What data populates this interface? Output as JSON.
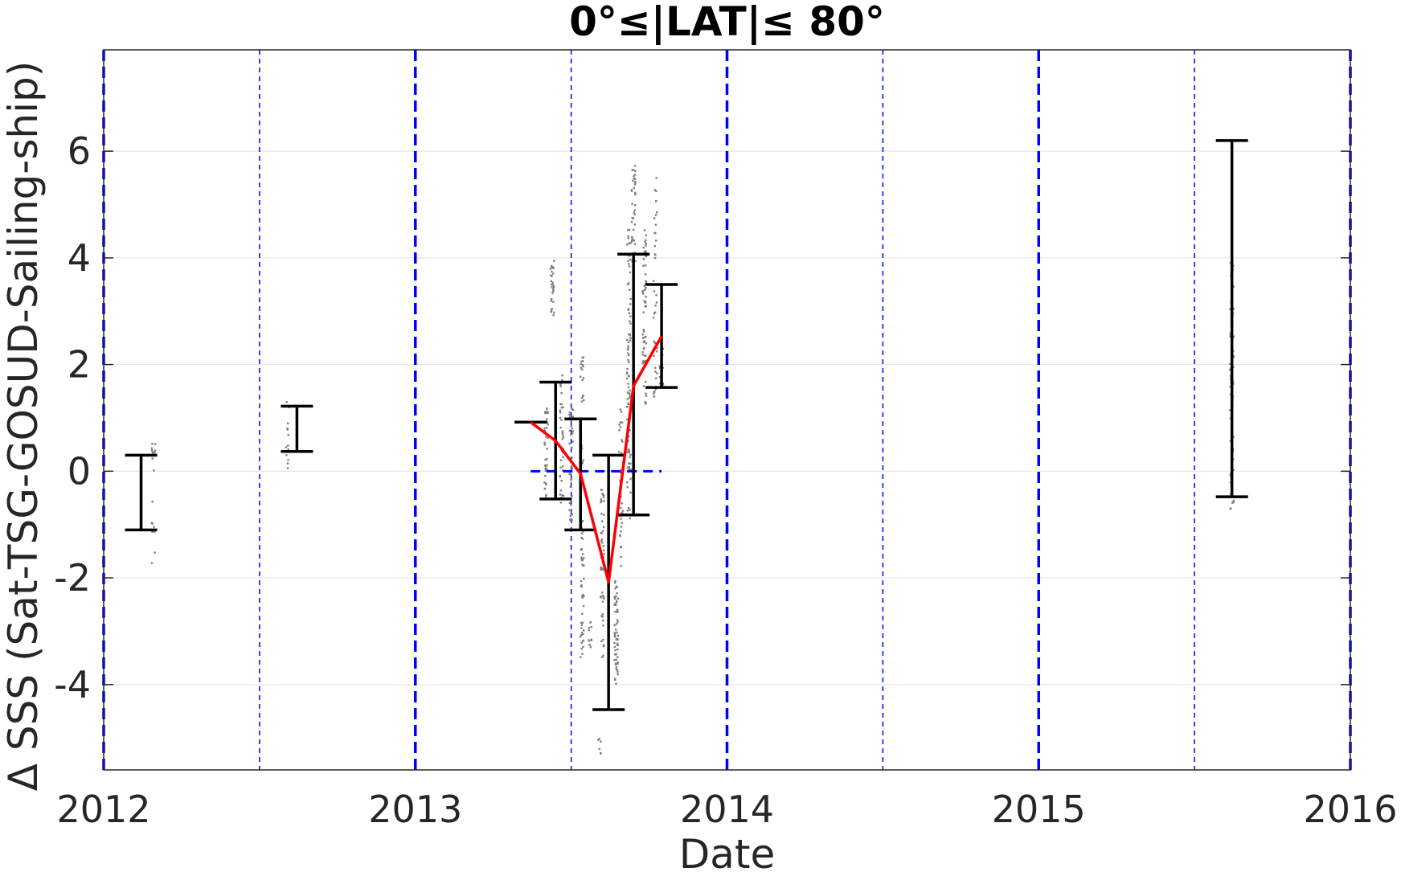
{
  "chart_data": {
    "type": "scatter",
    "title": "0°≤|LAT|≤ 80°",
    "xlabel": "Date",
    "ylabel": "Δ SSS (Sat-TSG-GOSUD-Sailing-ship)",
    "xlim": [
      2012.0,
      2016.0
    ],
    "ylim": [
      -5.6,
      7.9
    ],
    "x_ticks": [
      2012,
      2013,
      2014,
      2015,
      2016
    ],
    "x_tick_labels": [
      "2012",
      "2013",
      "2014",
      "2015",
      "2016"
    ],
    "y_ticks": [
      -4,
      -2,
      0,
      2,
      4,
      6
    ],
    "y_tick_labels": [
      "-4",
      "-2",
      "0",
      "2",
      "4",
      "6"
    ],
    "grid": true,
    "colors": {
      "errorbar": "#000000",
      "mean_line": "#ff0000",
      "points": "#7f7f7f",
      "year_lines": "#0000ff",
      "grid": "#e6e6e6"
    },
    "vertical_lines": {
      "year_boundaries": [
        2012.0,
        2013.0,
        2014.0,
        2015.0,
        2016.0
      ],
      "half_years": [
        2012.5,
        2013.5,
        2014.5,
        2015.5
      ]
    },
    "zero_segment": {
      "x": [
        2013.37,
        2013.79
      ],
      "y": 0
    },
    "errorbars": [
      {
        "x": 2012.12,
        "low": -1.1,
        "high": 0.3
      },
      {
        "x": 2012.62,
        "low": 0.37,
        "high": 1.22
      },
      {
        "x": 2013.37,
        "low": 0.92,
        "high": 0.92
      },
      {
        "x": 2013.45,
        "low": -0.52,
        "high": 1.67
      },
      {
        "x": 2013.53,
        "low": -1.1,
        "high": 0.98
      },
      {
        "x": 2013.62,
        "low": -4.47,
        "high": 0.3
      },
      {
        "x": 2013.7,
        "low": -0.82,
        "high": 4.07
      },
      {
        "x": 2013.79,
        "low": 1.57,
        "high": 3.5
      },
      {
        "x": 2015.62,
        "low": -0.48,
        "high": 6.2
      }
    ],
    "series": [
      {
        "x": [
          2013.37,
          2013.45,
          2013.53,
          2013.62,
          2013.7,
          2013.79
        ],
        "y": [
          0.92,
          0.57,
          -0.05,
          -2.08,
          1.6,
          2.53
        ]
      }
    ],
    "points": [
      {
        "x": 2012.16,
        "y_min": -1.75,
        "y_max": 0.55,
        "n": 18
      },
      {
        "x": 2012.59,
        "y_min": -0.02,
        "y_max": 1.3,
        "n": 14
      },
      {
        "x": 2013.42,
        "y_min": -0.5,
        "y_max": 1.3,
        "n": 40
      },
      {
        "x": 2013.44,
        "y_min": 2.9,
        "y_max": 3.95,
        "n": 30
      },
      {
        "x": 2013.47,
        "y_min": -0.6,
        "y_max": 1.9,
        "n": 40
      },
      {
        "x": 2013.5,
        "y_min": -1.0,
        "y_max": 1.3,
        "n": 40
      },
      {
        "x": 2013.535,
        "y_min": -3.5,
        "y_max": 2.2,
        "n": 80
      },
      {
        "x": 2013.56,
        "y_min": -3.3,
        "y_max": -2.8,
        "n": 12
      },
      {
        "x": 2013.59,
        "y_min": -5.35,
        "y_max": -5.0,
        "n": 6
      },
      {
        "x": 2013.6,
        "y_min": -3.5,
        "y_max": -0.3,
        "n": 50
      },
      {
        "x": 2013.645,
        "y_min": -4.0,
        "y_max": -2.0,
        "n": 60
      },
      {
        "x": 2013.66,
        "y_min": -1.8,
        "y_max": 1.2,
        "n": 40
      },
      {
        "x": 2013.685,
        "y_min": -0.9,
        "y_max": 4.6,
        "n": 90
      },
      {
        "x": 2013.7,
        "y_min": 3.9,
        "y_max": 5.75,
        "n": 40
      },
      {
        "x": 2013.735,
        "y_min": 1.2,
        "y_max": 4.6,
        "n": 60
      },
      {
        "x": 2013.77,
        "y_min": 1.2,
        "y_max": 5.5,
        "n": 40
      },
      {
        "x": 2013.79,
        "y_min": 1.6,
        "y_max": 2.6,
        "n": 20
      },
      {
        "x": 2015.62,
        "y_min": -0.75,
        "y_max": 4.05,
        "n": 80
      }
    ]
  }
}
